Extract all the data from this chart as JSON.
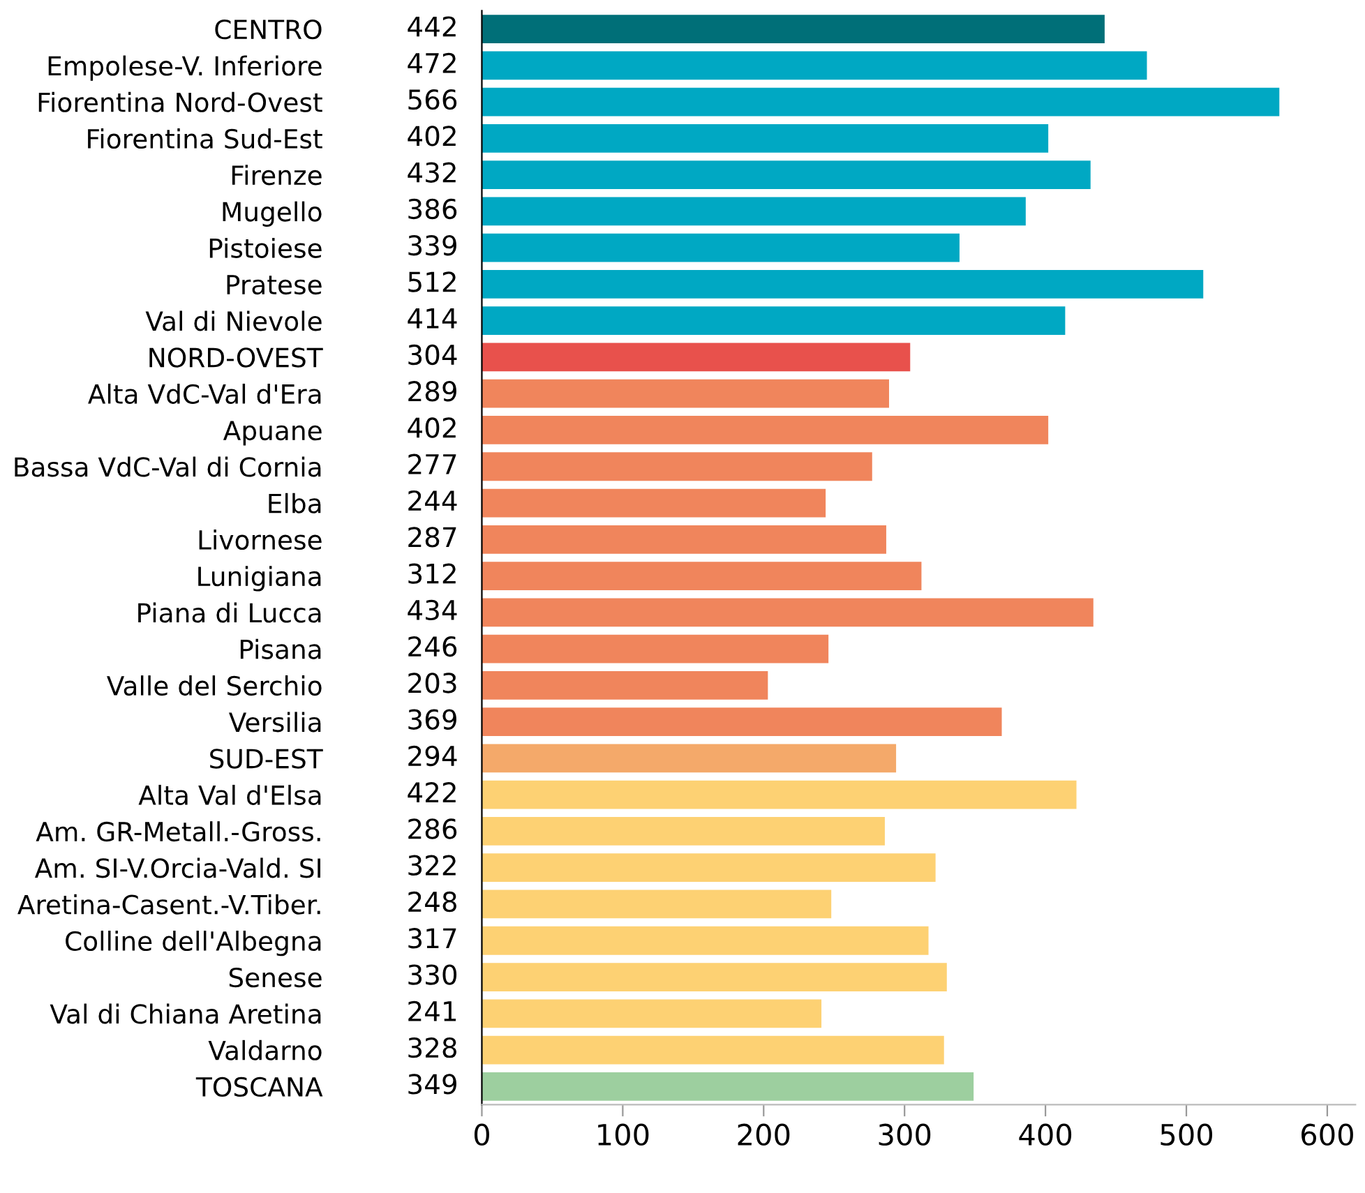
{
  "chart_data": {
    "type": "bar",
    "orientation": "horizontal",
    "data_labels": true,
    "grid": false,
    "legend": false,
    "categories": [
      "CENTRO",
      "Empolese-V. Inferiore",
      "Fiorentina Nord-Ovest",
      "Fiorentina Sud-Est",
      "Firenze",
      "Mugello",
      "Pistoiese",
      "Pratese",
      "Val di Nievole",
      "NORD-OVEST",
      "Alta VdC-Val d'Era",
      "Apuane",
      "Bassa VdC-Val di Cornia",
      "Elba",
      "Livornese",
      "Lunigiana",
      "Piana di Lucca",
      "Pisana",
      "Valle del Serchio",
      "Versilia",
      "SUD-EST",
      "Alta Val d'Elsa",
      "Am. GR-Metall.-Gross.",
      "Am. SI-V.Orcia-Vald. SI",
      "Aretina-Casent.-V.Tiber.",
      "Colline dell'Albegna",
      "Senese",
      "Val di Chiana Aretina",
      "Valdarno",
      "TOSCANA"
    ],
    "values": [
      442,
      472,
      566,
      402,
      432,
      386,
      339,
      512,
      414,
      304,
      289,
      402,
      277,
      244,
      287,
      312,
      434,
      246,
      203,
      369,
      294,
      422,
      286,
      322,
      248,
      317,
      330,
      241,
      328,
      349
    ],
    "colors": [
      "#006f78",
      "#00a8c3",
      "#00a8c3",
      "#00a8c3",
      "#00a8c3",
      "#00a8c3",
      "#00a8c3",
      "#00a8c3",
      "#00a8c3",
      "#e8514c",
      "#f0855c",
      "#f0855c",
      "#f0855c",
      "#f0855c",
      "#f0855c",
      "#f0855c",
      "#f0855c",
      "#f0855c",
      "#f0855c",
      "#f0855c",
      "#f4a96a",
      "#fdd173",
      "#fdd173",
      "#fdd173",
      "#fdd173",
      "#fdd173",
      "#fdd173",
      "#fdd173",
      "#fdd173",
      "#9dcf9f"
    ],
    "xlim": [
      0,
      620
    ],
    "xticks": [
      0,
      100,
      200,
      300,
      400,
      500,
      600
    ]
  }
}
